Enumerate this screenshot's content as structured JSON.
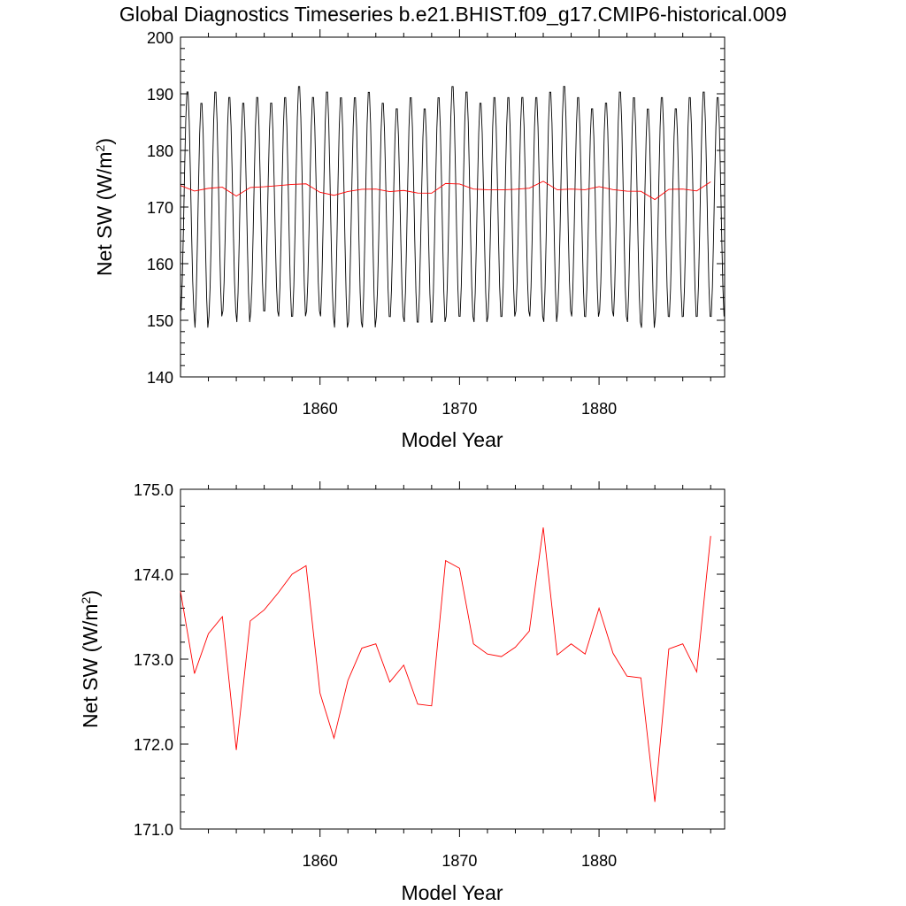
{
  "title": "Global Diagnostics Timeseries b.e21.BHIST.f09_g17.CMIP6-historical.009",
  "colors": {
    "monthly": "#000000",
    "annual": "#ff0000",
    "axis": "#000000"
  },
  "chart_data": [
    {
      "type": "line",
      "name": "monthly-and-annual",
      "xlabel": "Model Year",
      "ylabel": "Net SW (W/m",
      "ylabel_sup": "2",
      "ylabel_close": ")",
      "xlim": [
        1850,
        1889
      ],
      "ylim": [
        140,
        200
      ],
      "xticks": [
        1860,
        1870,
        1880
      ],
      "xtick_labels": [
        "1860",
        "1870",
        "1880"
      ],
      "yticks": [
        140,
        150,
        160,
        170,
        180,
        190,
        200
      ],
      "ytick_labels": [
        "140",
        "150",
        "160",
        "170",
        "180",
        "190",
        "200"
      ],
      "monthly_cycle": {
        "start_year": 1850,
        "months": 468,
        "min_values_approx": [
          151,
          148,
          150,
          151,
          149,
          151,
          151,
          150,
          150,
          151,
          150,
          148,
          149,
          148,
          150,
          150,
          149,
          149,
          149,
          150,
          150,
          149,
          150,
          150,
          151,
          150,
          149,
          151,
          150,
          150,
          151,
          150,
          149,
          148,
          150,
          150,
          150,
          150,
          150
        ],
        "max_values_approx": [
          191,
          189,
          191,
          190,
          189,
          190,
          189,
          190,
          192,
          190,
          191,
          190,
          190,
          191,
          189,
          188,
          190,
          188,
          190,
          192,
          191,
          189,
          190,
          190,
          190,
          190,
          191,
          192,
          190,
          188,
          189,
          191,
          190,
          188,
          190,
          188,
          190,
          191,
          190
        ]
      },
      "series": [
        {
          "name": "annual-mean",
          "color": "#ff0000",
          "x": [
            1850.0,
            1851.0,
            1852.0,
            1853.0,
            1854.0,
            1855.0,
            1856.0,
            1857.0,
            1858.0,
            1859.0,
            1860.0,
            1861.0,
            1862.0,
            1863.0,
            1864.0,
            1865.0,
            1866.0,
            1867.0,
            1868.0,
            1869.0,
            1870.0,
            1871.0,
            1872.0,
            1873.0,
            1874.0,
            1875.0,
            1876.0,
            1877.0,
            1878.0,
            1879.0,
            1880.0,
            1881.0,
            1882.0,
            1883.0,
            1884.0,
            1885.0,
            1886.0,
            1887.0,
            1888.0
          ],
          "values": [
            173.8,
            172.83,
            173.3,
            173.5,
            171.93,
            173.45,
            173.58,
            173.78,
            174.0,
            174.1,
            172.6,
            172.07,
            172.75,
            173.13,
            173.18,
            172.73,
            172.93,
            172.47,
            172.45,
            174.16,
            174.07,
            173.18,
            173.06,
            173.03,
            173.14,
            173.33,
            174.55,
            173.05,
            173.18,
            173.06,
            173.6,
            173.07,
            172.8,
            172.78,
            171.32,
            173.12,
            173.18,
            172.85,
            174.45
          ]
        }
      ]
    },
    {
      "type": "line",
      "name": "annual-mean-zoom",
      "xlabel": "Model Year",
      "ylabel": "Net SW (W/m",
      "ylabel_sup": "2",
      "ylabel_close": ")",
      "xlim": [
        1850,
        1889
      ],
      "ylim": [
        171.0,
        175.0
      ],
      "xticks": [
        1860,
        1870,
        1880
      ],
      "xtick_labels": [
        "1860",
        "1870",
        "1880"
      ],
      "yticks": [
        171.0,
        172.0,
        173.0,
        174.0,
        175.0
      ],
      "ytick_labels": [
        "171.0",
        "172.0",
        "173.0",
        "174.0",
        "175.0"
      ],
      "series": [
        {
          "name": "annual-mean",
          "color": "#ff0000",
          "x": [
            1850.0,
            1851.0,
            1852.0,
            1853.0,
            1854.0,
            1855.0,
            1856.0,
            1857.0,
            1858.0,
            1859.0,
            1860.0,
            1861.0,
            1862.0,
            1863.0,
            1864.0,
            1865.0,
            1866.0,
            1867.0,
            1868.0,
            1869.0,
            1870.0,
            1871.0,
            1872.0,
            1873.0,
            1874.0,
            1875.0,
            1876.0,
            1877.0,
            1878.0,
            1879.0,
            1880.0,
            1881.0,
            1882.0,
            1883.0,
            1884.0,
            1885.0,
            1886.0,
            1887.0,
            1888.0
          ],
          "values": [
            173.8,
            172.83,
            173.3,
            173.5,
            171.93,
            173.45,
            173.58,
            173.78,
            174.0,
            174.1,
            172.6,
            172.07,
            172.75,
            173.13,
            173.18,
            172.73,
            172.93,
            172.47,
            172.45,
            174.16,
            174.07,
            173.18,
            173.06,
            173.03,
            173.14,
            173.33,
            174.55,
            173.05,
            173.18,
            173.06,
            173.6,
            173.07,
            172.8,
            172.78,
            171.32,
            173.12,
            173.18,
            172.85,
            174.45
          ]
        }
      ]
    }
  ]
}
